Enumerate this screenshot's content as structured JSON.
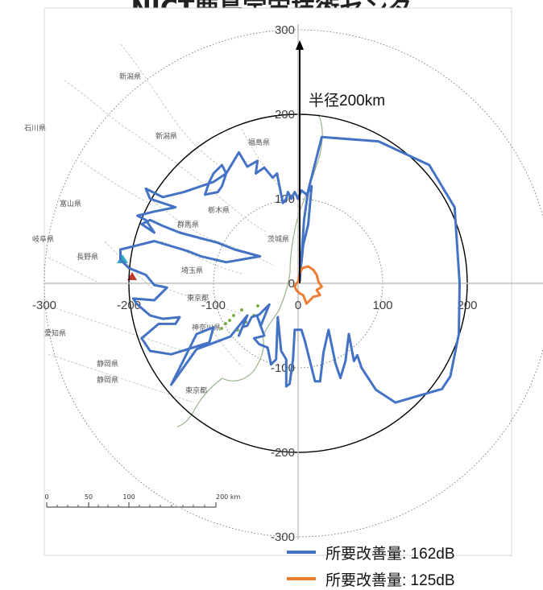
{
  "title": "NICT鹿島宇宙技術センタ",
  "radius_label": "半径200km",
  "map_scale": {
    "ticks": [
      "0",
      "50",
      "100",
      "200 km"
    ]
  },
  "map_labels": [
    {
      "name": "pref-label-niigata-1",
      "text": "新潟県"
    },
    {
      "name": "pref-label-niigata-2",
      "text": "新潟県"
    },
    {
      "name": "pref-label-ishikawa",
      "text": "石川県"
    },
    {
      "name": "pref-label-toyama",
      "text": "富山県"
    },
    {
      "name": "pref-label-gifu",
      "text": "岐阜県"
    },
    {
      "name": "pref-label-nagano",
      "text": "長野県"
    },
    {
      "name": "pref-label-aichi",
      "text": "愛知県"
    },
    {
      "name": "pref-label-shizuoka",
      "text": "静岡県"
    },
    {
      "name": "pref-label-fukushima",
      "text": "福島県"
    },
    {
      "name": "pref-label-tochigi",
      "text": "栃木県"
    },
    {
      "name": "pref-label-gunma",
      "text": "群馬県"
    },
    {
      "name": "pref-label-ibaraki",
      "text": "茨城県"
    },
    {
      "name": "pref-label-saitama",
      "text": "埼玉県"
    },
    {
      "name": "pref-label-tokyo",
      "text": "東京都"
    },
    {
      "name": "pref-label-kanagawa",
      "text": "神奈川県"
    },
    {
      "name": "pref-label-tokyo-2",
      "text": "東京都"
    },
    {
      "name": "pref-label-shizuoka-2",
      "text": "静岡県"
    }
  ],
  "colors": {
    "series1": "#4472C4",
    "series2": "#ED7D31"
  },
  "chart_data": {
    "type": "line",
    "title": "NICT鹿島宇宙技術センタ",
    "xlim": [
      -300,
      300
    ],
    "ylim": [
      -300,
      300
    ],
    "x_ticks": [
      "-300",
      "-200",
      "-100",
      "0",
      "100",
      "200"
    ],
    "y_ticks": [
      "300",
      "200",
      "100",
      "0",
      "-100",
      "-200",
      "-300"
    ],
    "reference_circles_km": [
      100,
      200,
      300
    ],
    "reference_circle_highlight_km": 200,
    "series": [
      {
        "name": "所要改善量: 162dB",
        "color": "#4472C4",
        "points": [
          [
            2,
            2
          ],
          [
            7,
            75
          ],
          [
            12,
            110
          ],
          [
            28,
            173
          ],
          [
            95,
            168
          ],
          [
            155,
            140
          ],
          [
            185,
            90
          ],
          [
            191,
            0
          ],
          [
            190,
            -60
          ],
          [
            180,
            -110
          ],
          [
            170,
            -125
          ],
          [
            115,
            -141
          ],
          [
            92,
            -126
          ],
          [
            75,
            -100
          ],
          [
            70,
            -85
          ],
          [
            66,
            -92
          ],
          [
            60,
            -60
          ],
          [
            56,
            -92
          ],
          [
            50,
            -112
          ],
          [
            44,
            -94
          ],
          [
            36,
            -55
          ],
          [
            30,
            -82
          ],
          [
            26,
            -116
          ],
          [
            20,
            -116
          ],
          [
            14,
            -92
          ],
          [
            8,
            -68
          ],
          [
            4,
            -55
          ],
          [
            -4,
            -55
          ],
          [
            -6,
            -90
          ],
          [
            -10,
            -119
          ],
          [
            -14,
            -122
          ],
          [
            -14,
            -90
          ],
          [
            -20,
            -80
          ],
          [
            -24,
            -40
          ],
          [
            -26,
            -90
          ],
          [
            -32,
            -96
          ],
          [
            -36,
            -76
          ],
          [
            -46,
            -72
          ],
          [
            -52,
            -65
          ],
          [
            -40,
            -62
          ],
          [
            -48,
            -40
          ],
          [
            -44,
            -50
          ],
          [
            -34,
            -25
          ],
          [
            -46,
            -37
          ],
          [
            -55,
            -40
          ],
          [
            -60,
            -50
          ],
          [
            -66,
            -52
          ],
          [
            -70,
            -62
          ],
          [
            -60,
            -38
          ],
          [
            -80,
            -63
          ],
          [
            -120,
            -78
          ],
          [
            -150,
            -120
          ],
          [
            -120,
            -60
          ],
          [
            -100,
            -52
          ],
          [
            -105,
            -70
          ],
          [
            -150,
            -84
          ],
          [
            -175,
            -80
          ],
          [
            -185,
            -65
          ],
          [
            -165,
            -48
          ],
          [
            -145,
            -48
          ],
          [
            -140,
            -40
          ],
          [
            -160,
            -42
          ],
          [
            -175,
            -38
          ],
          [
            -190,
            -25
          ],
          [
            -195,
            -18
          ],
          [
            -170,
            -20
          ],
          [
            -155,
            -5
          ],
          [
            -170,
            -2
          ],
          [
            -180,
            10
          ],
          [
            -200,
            18
          ],
          [
            -210,
            28
          ],
          [
            -210,
            40
          ],
          [
            -190,
            45
          ],
          [
            -170,
            50
          ],
          [
            -130,
            38
          ],
          [
            -115,
            32
          ],
          [
            -85,
            25
          ],
          [
            -45,
            32
          ],
          [
            -75,
            40
          ],
          [
            -95,
            48
          ],
          [
            -140,
            60
          ],
          [
            -160,
            68
          ],
          [
            -175,
            75
          ],
          [
            -185,
            70
          ],
          [
            -170,
            60
          ],
          [
            -180,
            75
          ],
          [
            -190,
            80
          ],
          [
            -170,
            85
          ],
          [
            -145,
            90
          ],
          [
            -175,
            100
          ],
          [
            -180,
            112
          ],
          [
            -160,
            102
          ],
          [
            -135,
            108
          ],
          [
            -100,
            120
          ],
          [
            -85,
            130
          ],
          [
            -90,
            115
          ],
          [
            -95,
            108
          ],
          [
            -110,
            105
          ],
          [
            -105,
            120
          ],
          [
            -100,
            130
          ],
          [
            -90,
            140
          ],
          [
            -85,
            130
          ],
          [
            -70,
            155
          ],
          [
            -60,
            138
          ],
          [
            -48,
            145
          ],
          [
            -50,
            130
          ],
          [
            -40,
            137
          ],
          [
            -30,
            125
          ],
          [
            -25,
            130
          ],
          [
            -18,
            95
          ],
          [
            -14,
            100
          ],
          [
            -12,
            108
          ],
          [
            -8,
            100
          ],
          [
            -4,
            108
          ],
          [
            0,
            100
          ],
          [
            4,
            110
          ],
          [
            10,
            105
          ],
          [
            16,
            115
          ],
          [
            12,
            70
          ],
          [
            6,
            45
          ],
          [
            4,
            25
          ],
          [
            2,
            12
          ],
          [
            2,
            2
          ]
        ]
      },
      {
        "name": "所要改善量: 125dB",
        "color": "#ED7D31",
        "points": [
          [
            0,
            2
          ],
          [
            2,
            12
          ],
          [
            5,
            18
          ],
          [
            12,
            20
          ],
          [
            18,
            16
          ],
          [
            22,
            10
          ],
          [
            24,
            2
          ],
          [
            28,
            -4
          ],
          [
            22,
            -8
          ],
          [
            26,
            -14
          ],
          [
            18,
            -16
          ],
          [
            14,
            -20
          ],
          [
            10,
            -24
          ],
          [
            6,
            -14
          ],
          [
            2,
            -12
          ],
          [
            -2,
            -8
          ],
          [
            -4,
            -4
          ],
          [
            -2,
            0
          ],
          [
            0,
            2
          ]
        ]
      }
    ],
    "legend": [
      "所要改善量: 162dB",
      "所要改善量: 125dB"
    ],
    "legend_position": "bottom-right",
    "annotation": "半径200km"
  }
}
